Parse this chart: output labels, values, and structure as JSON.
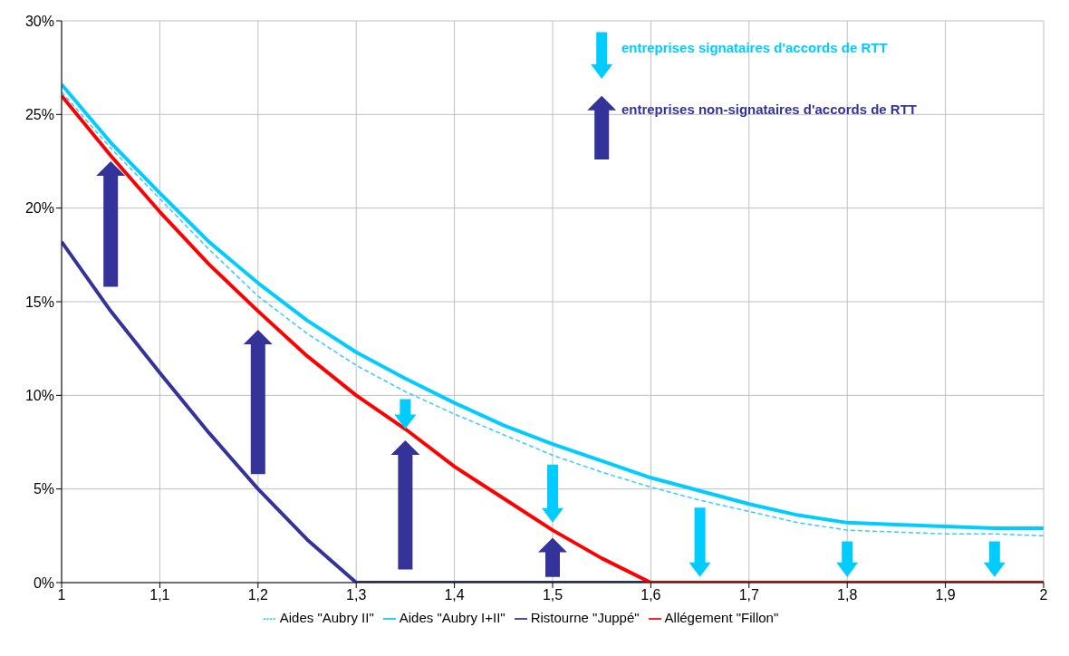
{
  "chart_data": {
    "type": "line",
    "x": [
      1,
      1.05,
      1.1,
      1.15,
      1.2,
      1.25,
      1.3,
      1.35,
      1.4,
      1.45,
      1.5,
      1.55,
      1.6,
      1.65,
      1.7,
      1.75,
      1.8,
      1.85,
      1.9,
      1.95,
      2
    ],
    "series": [
      {
        "name": "Aides \"Aubry II\"",
        "color": "#33ccff",
        "line_style": "dashed",
        "values": [
          26.2,
          23.2,
          20.5,
          17.8,
          15.3,
          13.3,
          11.6,
          10.2,
          9.0,
          7.9,
          6.8,
          5.9,
          5.1,
          4.4,
          3.8,
          3.2,
          2.8,
          2.7,
          2.6,
          2.6,
          2.5
        ]
      },
      {
        "name": "Aides \"Aubry I+II\"",
        "color": "#00ccff",
        "values": [
          26.6,
          23.5,
          20.8,
          18.2,
          16.0,
          14.0,
          12.3,
          10.9,
          9.6,
          8.4,
          7.4,
          6.5,
          5.6,
          4.9,
          4.2,
          3.6,
          3.2,
          3.1,
          3.0,
          2.9,
          2.9
        ]
      },
      {
        "name": "Ristourne \"Juppé\"",
        "color": "#333399",
        "values": [
          18.2,
          14.5,
          11.2,
          8.0,
          5.0,
          2.3,
          0,
          0,
          0,
          0,
          0,
          0,
          0,
          null,
          null,
          null,
          null,
          null,
          null,
          null,
          null
        ]
      },
      {
        "name": "Allégement \"Fillon\"",
        "color": "#ff0000",
        "values": [
          26.0,
          22.8,
          19.8,
          17.0,
          14.5,
          12.1,
          10.0,
          8.2,
          6.2,
          4.5,
          2.8,
          1.3,
          0,
          0,
          0,
          0,
          0,
          0,
          0,
          0,
          0
        ]
      }
    ],
    "xlim": [
      1,
      2
    ],
    "xticks": [
      1,
      {
        "value": 1.1,
        "label": "1,1"
      },
      {
        "value": 1.2,
        "label": "1,2"
      },
      {
        "value": 1.3,
        "label": "1,3"
      },
      {
        "value": 1.4,
        "label": "1,4"
      },
      {
        "value": 1.5,
        "label": "1,5"
      },
      {
        "value": 1.6,
        "label": "1,6"
      },
      {
        "value": 1.7,
        "label": "1,7"
      },
      {
        "value": 1.8,
        "label": "1,8"
      },
      {
        "value": 1.9,
        "label": "1,9"
      },
      2
    ],
    "ylim": [
      0,
      30
    ],
    "yticks": [
      {
        "value": 0,
        "label": "0%"
      },
      {
        "value": 5,
        "label": "5%"
      },
      {
        "value": 10,
        "label": "10%"
      },
      {
        "value": 15,
        "label": "15%"
      },
      {
        "value": 20,
        "label": "20%"
      },
      {
        "value": 25,
        "label": "25%"
      },
      {
        "value": 30,
        "label": "30%"
      }
    ],
    "annotations": [
      "entreprises signataires d'accords de RTT",
      "entreprises non-signataires d'accords de RTT"
    ],
    "grid": true,
    "legend": "bottom",
    "marker": "none"
  }
}
